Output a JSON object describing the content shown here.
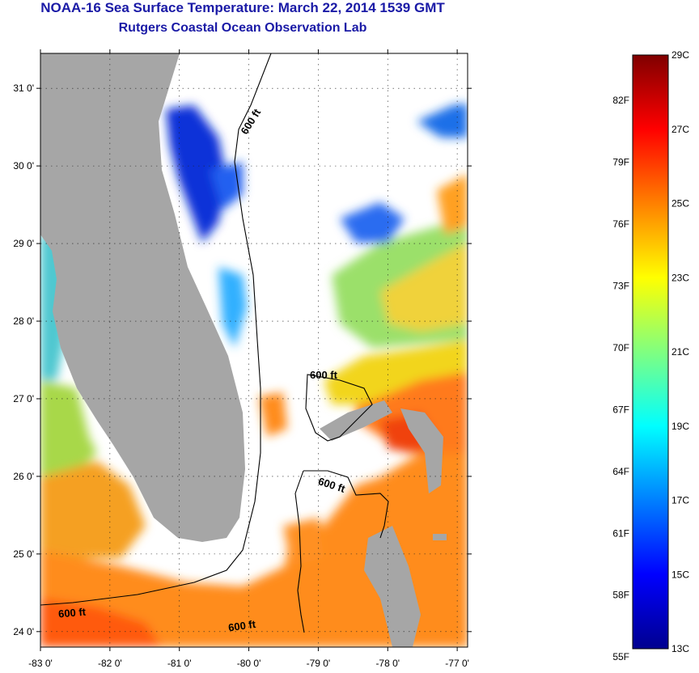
{
  "header": {
    "title": "NOAA-16 Sea Surface Temperature:  March 22, 2014 1539 GMT",
    "subtitle": "Rutgers Coastal Ocean Observation Lab"
  },
  "map": {
    "lon_ticks": [
      "-83 0'",
      "-82 0'",
      "-81 0'",
      "-80 0'",
      "-79 0'",
      "-78 0'",
      "-77 0'"
    ],
    "lat_ticks": [
      "31 0'",
      "30 0'",
      "29 0'",
      "28 0'",
      "27 0'",
      "26 0'",
      "25 0'",
      "24 0'"
    ],
    "lon_range": [
      -83,
      -76.85
    ],
    "lat_range": [
      23.8,
      31.45
    ],
    "isobath_label": "600 ft",
    "colors": {
      "land": "#a6a6a6",
      "cloud": "#ffffff"
    }
  },
  "colorbar": {
    "fahrenheit_labels": [
      "82F",
      "79F",
      "76F",
      "73F",
      "70F",
      "67F",
      "64F",
      "61F",
      "58F",
      "55F"
    ],
    "celsius_labels": [
      "29C",
      "27C",
      "25C",
      "23C",
      "21C",
      "19C",
      "17C",
      "15C",
      "13C"
    ],
    "min_c": 13,
    "max_c": 29,
    "stops": [
      "#00008f",
      "#0000ff",
      "#0080ff",
      "#00ffff",
      "#80ff80",
      "#ffff00",
      "#ff8000",
      "#ff0000",
      "#800000"
    ]
  }
}
